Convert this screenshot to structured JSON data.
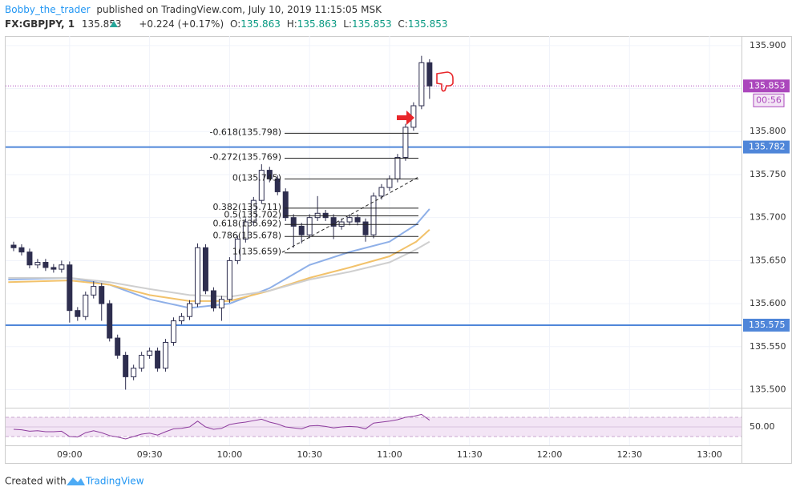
{
  "header": {
    "author": "Bobby_the_trader",
    "published": "published on TradingView.com, July 10, 2019 11:15:05 MSK",
    "symbol": "FX:GBPJPY, 1",
    "last": 135.853,
    "change": "+0.224 (+0.17%)",
    "o_label": "O:",
    "o": 135.863,
    "h_label": "H:",
    "h": 135.863,
    "l_label": "L:",
    "l": 135.853,
    "c_label": "C:",
    "c": 135.853
  },
  "chart_data": {
    "type": "candlestick",
    "xlim": [
      "08:36",
      "13:12"
    ],
    "xticks": [
      "09:00",
      "09:30",
      "10:00",
      "10:30",
      "11:00",
      "11:30",
      "12:00",
      "12:30",
      "13:00"
    ],
    "ylim": [
      135.48,
      135.911
    ],
    "yticks": [
      {
        "value": 135.5,
        "label": "135.500"
      },
      {
        "value": 135.55,
        "label": "135.550"
      },
      {
        "value": 135.6,
        "label": "135.600"
      },
      {
        "value": 135.65,
        "label": "135.650"
      },
      {
        "value": 135.7,
        "label": "135.700"
      },
      {
        "value": 135.75,
        "label": "135.750"
      },
      {
        "value": 135.8,
        "label": "135.800"
      },
      {
        "value": 135.85,
        "label": "135.850"
      },
      {
        "value": 135.9,
        "label": "135.900"
      }
    ],
    "grid": true,
    "up_color": "#ffffff",
    "down_color": "#2e2e4f",
    "border_color": "#2e2e4f",
    "x": [
      "08:39",
      "08:42",
      "08:45",
      "08:48",
      "08:51",
      "08:54",
      "08:57",
      "09:00",
      "09:03",
      "09:06",
      "09:09",
      "09:12",
      "09:15",
      "09:18",
      "09:21",
      "09:24",
      "09:27",
      "09:30",
      "09:33",
      "09:36",
      "09:39",
      "09:42",
      "09:45",
      "09:48",
      "09:51",
      "09:54",
      "09:57",
      "10:00",
      "10:03",
      "10:06",
      "10:09",
      "10:12",
      "10:15",
      "10:18",
      "10:21",
      "10:24",
      "10:27",
      "10:30",
      "10:33",
      "10:36",
      "10:39",
      "10:42",
      "10:45",
      "10:48",
      "10:51",
      "10:54",
      "10:57",
      "11:00",
      "11:03",
      "11:06",
      "11:09",
      "11:12",
      "11:15"
    ],
    "open": [
      135.668,
      135.665,
      135.66,
      135.645,
      135.648,
      135.642,
      135.64,
      135.645,
      135.592,
      135.585,
      135.61,
      135.62,
      135.6,
      135.56,
      135.54,
      135.515,
      135.525,
      135.54,
      135.545,
      135.525,
      135.555,
      135.58,
      135.585,
      135.6,
      135.665,
      135.615,
      135.595,
      135.605,
      135.65,
      135.675,
      135.695,
      135.72,
      135.755,
      135.745,
      135.73,
      135.7,
      135.69,
      135.68,
      135.7,
      135.705,
      135.7,
      135.69,
      135.695,
      135.7,
      135.695,
      135.68,
      135.725,
      135.735,
      135.745,
      135.77,
      135.805,
      135.83,
      135.88
    ],
    "high": [
      135.672,
      135.669,
      135.664,
      135.652,
      135.652,
      135.646,
      135.65,
      135.649,
      135.596,
      135.614,
      135.626,
      135.624,
      135.604,
      135.564,
      135.544,
      135.529,
      135.544,
      135.549,
      135.549,
      135.559,
      135.584,
      135.589,
      135.604,
      135.67,
      135.669,
      135.619,
      135.609,
      135.654,
      135.679,
      135.699,
      135.724,
      135.762,
      135.759,
      135.749,
      135.734,
      135.704,
      135.694,
      135.704,
      135.725,
      135.709,
      135.704,
      135.699,
      135.704,
      135.704,
      135.699,
      135.729,
      135.739,
      135.749,
      135.774,
      135.809,
      135.834,
      135.888,
      135.884
    ],
    "low": [
      135.661,
      135.656,
      135.641,
      135.641,
      135.638,
      135.636,
      135.636,
      135.578,
      135.58,
      135.581,
      135.606,
      135.58,
      135.556,
      135.536,
      135.5,
      135.511,
      135.521,
      135.536,
      135.521,
      135.521,
      135.551,
      135.576,
      135.581,
      135.596,
      135.611,
      135.591,
      135.58,
      135.601,
      135.646,
      135.671,
      135.691,
      135.716,
      135.741,
      135.726,
      135.696,
      135.665,
      135.67,
      135.676,
      135.696,
      135.696,
      135.675,
      135.686,
      135.691,
      135.691,
      135.672,
      135.676,
      135.721,
      135.731,
      135.741,
      135.766,
      135.801,
      135.826,
      135.838
    ],
    "close": [
      135.665,
      135.66,
      135.645,
      135.648,
      135.642,
      135.64,
      135.645,
      135.592,
      135.585,
      135.61,
      135.62,
      135.6,
      135.56,
      135.54,
      135.515,
      135.525,
      135.54,
      135.545,
      135.525,
      135.555,
      135.58,
      135.585,
      135.6,
      135.665,
      135.615,
      135.595,
      135.605,
      135.65,
      135.675,
      135.695,
      135.72,
      135.755,
      135.745,
      135.73,
      135.7,
      135.69,
      135.68,
      135.7,
      135.705,
      135.7,
      135.69,
      135.695,
      135.7,
      135.695,
      135.68,
      135.725,
      135.735,
      135.745,
      135.77,
      135.805,
      135.83,
      135.88,
      135.853
    ],
    "lines": [
      {
        "color": "#8fb0e8",
        "x": [
          "08:37",
          "09:00",
          "09:15",
          "09:30",
          "09:45",
          "10:00",
          "10:15",
          "10:30",
          "10:45",
          "11:00",
          "11:10",
          "11:15"
        ],
        "values": [
          135.628,
          135.63,
          135.622,
          135.605,
          135.595,
          135.6,
          135.618,
          135.645,
          135.66,
          135.672,
          135.692,
          135.71
        ]
      },
      {
        "color": "#f2c26b",
        "x": [
          "08:37",
          "09:00",
          "09:15",
          "09:30",
          "09:45",
          "10:00",
          "10:15",
          "10:30",
          "10:45",
          "11:00",
          "11:10",
          "11:15"
        ],
        "values": [
          135.625,
          135.627,
          135.622,
          135.61,
          135.603,
          135.603,
          135.615,
          135.63,
          135.642,
          135.655,
          135.672,
          135.686
        ]
      },
      {
        "color": "#cfcfcf",
        "x": [
          "08:37",
          "09:00",
          "09:15",
          "09:30",
          "09:45",
          "10:00",
          "10:15",
          "10:30",
          "10:45",
          "11:00",
          "11:10",
          "11:15"
        ],
        "values": [
          135.63,
          135.63,
          135.625,
          135.617,
          135.61,
          135.608,
          135.615,
          135.628,
          135.637,
          135.648,
          135.663,
          135.672
        ]
      }
    ],
    "levels": [
      {
        "value": 135.782,
        "color": "#4f86d9"
      },
      {
        "value": 135.575,
        "color": "#4f86d9"
      }
    ],
    "last_price": 135.853,
    "last_color": "#ab47bc",
    "countdown": "00:56",
    "fib": [
      {
        "label": "-0.618(135.798)",
        "value": 135.798
      },
      {
        "label": "-0.272(135.769)",
        "value": 135.769
      },
      {
        "label": "0(135.745)",
        "value": 135.745
      },
      {
        "label": "0.382(135.711)",
        "value": 135.711
      },
      {
        "label": "0.5(135.702)",
        "value": 135.702
      },
      {
        "label": "0.618(135.692)",
        "value": 135.692
      },
      {
        "label": "0.786(135.678)",
        "value": 135.678
      },
      {
        "label": "1(135.659)",
        "value": 135.659
      }
    ],
    "rsi": {
      "color": "#8e3d9e",
      "ylim": [
        11.7,
        88.3
      ],
      "yticks": [
        {
          "value": 50,
          "label": "50.00"
        }
      ],
      "band": [
        30,
        70
      ],
      "values": [
        45,
        44,
        41,
        42,
        40,
        40,
        41,
        30,
        29,
        38,
        42,
        38,
        32,
        29,
        25,
        30,
        35,
        37,
        33,
        40,
        46,
        47,
        50,
        62,
        50,
        45,
        47,
        55,
        58,
        60,
        63,
        66,
        60,
        56,
        50,
        48,
        46,
        52,
        53,
        51,
        48,
        50,
        51,
        50,
        46,
        58,
        60,
        62,
        65,
        70,
        72,
        76,
        64
      ]
    }
  },
  "footer": {
    "created": "Created with",
    "brand": "TradingView"
  }
}
